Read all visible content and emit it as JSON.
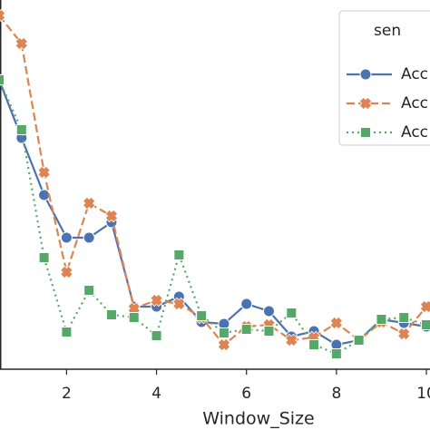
{
  "chart_data": {
    "type": "line",
    "xlabel": "Window_Size",
    "legend_title": "sen",
    "legend": "upper right",
    "x": [
      0.5,
      1,
      1.5,
      2,
      2.5,
      3,
      3.5,
      4,
      4.5,
      5,
      5.5,
      6,
      6.5,
      7,
      7.5,
      8,
      8.5,
      9,
      9.5,
      10
    ],
    "xlim": [
      0.52,
      10.08
    ],
    "xticks": [
      2,
      4,
      6,
      8,
      10
    ],
    "ylim": [
      0,
      407
    ],
    "series": [
      {
        "name": "Acc",
        "color": "#4c72b0",
        "dash": "solid",
        "marker": "circle",
        "values": [
          319,
          255,
          192,
          145,
          145,
          162,
          69,
          69,
          80,
          52,
          50,
          72,
          64,
          36,
          42,
          27,
          32,
          55,
          51,
          47
        ]
      },
      {
        "name": "Acc",
        "color": "#dd8452",
        "dash": "dashed",
        "marker": "x",
        "values": [
          390,
          359,
          217,
          107,
          183,
          169,
          67,
          76,
          72,
          57,
          27,
          47,
          49,
          32,
          35,
          51,
          32,
          52,
          39,
          69
        ]
      },
      {
        "name": "Acc",
        "color": "#55a868",
        "dash": "dotted",
        "marker": "square",
        "values": [
          319,
          264,
          123,
          41,
          87,
          60,
          57,
          37,
          126,
          59,
          40,
          44,
          42,
          62,
          27,
          17,
          32,
          55,
          57,
          49
        ]
      }
    ]
  }
}
